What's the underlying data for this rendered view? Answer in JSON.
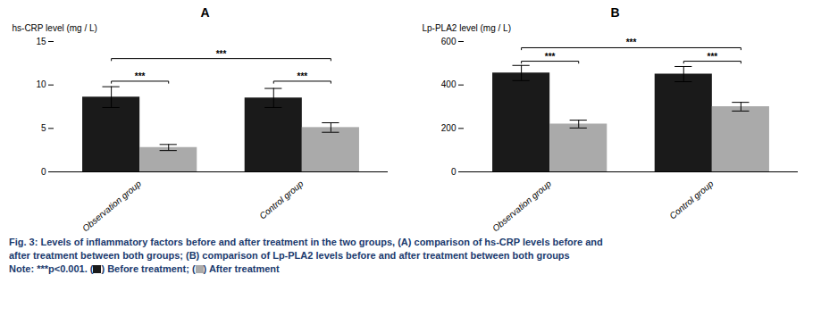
{
  "chart_data": [
    {
      "type": "bar",
      "title": "A",
      "ylabel": "hs-CRP level (mg / L)",
      "categories": [
        "Observation group",
        "Control group"
      ],
      "series": [
        {
          "color": "#1a1a1a",
          "values": [
            8.6,
            8.5
          ],
          "errors": [
            1.2,
            1.1
          ]
        },
        {
          "color": "#aaaaaa",
          "values": [
            2.8,
            5.1
          ],
          "errors": [
            0.35,
            0.55
          ]
        }
      ],
      "ylim": [
        0,
        15
      ],
      "yticks": [
        0,
        5,
        10,
        15
      ],
      "grid": false,
      "annotations": [
        {
          "text": "***",
          "y": 10.2,
          "from": [
            0,
            0
          ],
          "to": [
            0,
            1
          ]
        },
        {
          "text": "***",
          "y": 10.2,
          "from": [
            1,
            0
          ],
          "to": [
            1,
            1
          ]
        },
        {
          "text": "***",
          "y": 12.8,
          "from": [
            0,
            0
          ],
          "to": [
            1,
            1
          ]
        }
      ]
    },
    {
      "type": "bar",
      "title": "B",
      "ylabel": "Lp-PLA2 level (mg / L)",
      "categories": [
        "Observation group",
        "Control group"
      ],
      "series": [
        {
          "color": "#1a1a1a",
          "values": [
            455,
            450
          ],
          "errors": [
            35,
            35
          ]
        },
        {
          "color": "#aaaaaa",
          "values": [
            220,
            300
          ],
          "errors": [
            18,
            20
          ]
        }
      ],
      "ylim": [
        0,
        600
      ],
      "yticks": [
        0,
        200,
        400,
        600
      ],
      "grid": false,
      "annotations": [
        {
          "text": "***",
          "y": 500,
          "from": [
            0,
            0
          ],
          "to": [
            0,
            1
          ]
        },
        {
          "text": "***",
          "y": 500,
          "from": [
            1,
            0
          ],
          "to": [
            1,
            1
          ]
        },
        {
          "text": "***",
          "y": 562,
          "from": [
            0,
            0
          ],
          "to": [
            1,
            1
          ]
        }
      ]
    }
  ],
  "caption": {
    "color": "#1a3a6e",
    "lines": [
      "Fig. 3: Levels of inflammatory factors before and after treatment in the two groups, (A) comparison of hs-CRP levels before and",
      "after treatment between both groups; (B) comparison of Lp-PLA2 levels before and after treatment between both groups"
    ],
    "note": [
      "Note: ***p<0.001. (",
      ") Before treatment; (",
      ") After treatment"
    ]
  }
}
